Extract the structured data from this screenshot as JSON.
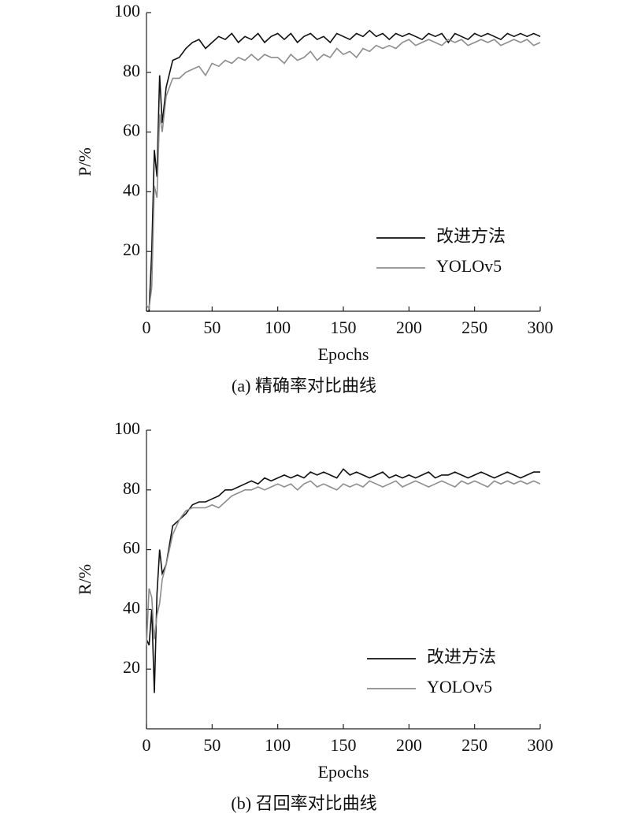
{
  "chart_data": [
    {
      "type": "line",
      "xlabel": "Epochs",
      "ylabel": "P/%",
      "caption": "(a) 精确率对比曲线",
      "xlim": [
        0,
        300
      ],
      "xticks": [
        0,
        50,
        100,
        150,
        200,
        250,
        300
      ],
      "ylim": [
        0,
        100
      ],
      "yticks": [
        20,
        40,
        60,
        80,
        100
      ],
      "legend": "right",
      "x": [
        0,
        2,
        4,
        6,
        8,
        10,
        12,
        15,
        20,
        25,
        30,
        35,
        40,
        45,
        50,
        55,
        60,
        65,
        70,
        75,
        80,
        85,
        90,
        95,
        100,
        105,
        110,
        115,
        120,
        125,
        130,
        135,
        140,
        145,
        150,
        155,
        160,
        165,
        170,
        175,
        180,
        185,
        190,
        195,
        200,
        205,
        210,
        215,
        220,
        225,
        230,
        235,
        240,
        245,
        250,
        255,
        260,
        265,
        270,
        275,
        280,
        285,
        290,
        295,
        300
      ],
      "series": [
        {
          "name": "改进方法",
          "color": "#111111",
          "values": [
            0,
            0,
            20,
            54,
            45,
            79,
            63,
            75,
            84,
            85,
            88,
            90,
            91,
            88,
            90,
            92,
            91,
            93,
            90,
            92,
            91,
            93,
            90,
            92,
            93,
            91,
            93,
            90,
            92,
            93,
            91,
            92,
            90,
            93,
            92,
            91,
            93,
            92,
            94,
            92,
            93,
            91,
            93,
            92,
            93,
            92,
            91,
            93,
            92,
            93,
            90,
            93,
            92,
            91,
            93,
            92,
            93,
            92,
            91,
            93,
            92,
            93,
            92,
            93,
            92
          ]
        },
        {
          "name": "YOLOv5",
          "color": "#8c8c8c",
          "values": [
            2,
            1,
            8,
            42,
            38,
            66,
            60,
            72,
            78,
            78,
            80,
            81,
            82,
            79,
            83,
            82,
            84,
            83,
            85,
            84,
            86,
            84,
            86,
            85,
            85,
            83,
            86,
            84,
            85,
            87,
            84,
            86,
            85,
            88,
            86,
            87,
            85,
            88,
            87,
            89,
            88,
            89,
            88,
            90,
            91,
            89,
            90,
            91,
            90,
            89,
            91,
            90,
            91,
            89,
            90,
            91,
            90,
            91,
            89,
            90,
            91,
            90,
            91,
            89,
            90
          ]
        }
      ]
    },
    {
      "type": "line",
      "xlabel": "Epochs",
      "ylabel": "R/%",
      "caption": "(b) 召回率对比曲线",
      "xlim": [
        0,
        300
      ],
      "xticks": [
        0,
        50,
        100,
        150,
        200,
        250,
        300
      ],
      "ylim": [
        0,
        100
      ],
      "yticks": [
        20,
        40,
        60,
        80,
        100
      ],
      "legend": "right",
      "x": [
        0,
        2,
        4,
        6,
        8,
        10,
        12,
        15,
        20,
        25,
        30,
        35,
        40,
        45,
        50,
        55,
        60,
        65,
        70,
        75,
        80,
        85,
        90,
        95,
        100,
        105,
        110,
        115,
        120,
        125,
        130,
        135,
        140,
        145,
        150,
        155,
        160,
        165,
        170,
        175,
        180,
        185,
        190,
        195,
        200,
        205,
        210,
        215,
        220,
        225,
        230,
        235,
        240,
        245,
        250,
        255,
        260,
        265,
        270,
        275,
        280,
        285,
        290,
        295,
        300
      ],
      "series": [
        {
          "name": "改进方法",
          "color": "#111111",
          "values": [
            30,
            28,
            40,
            12,
            45,
            60,
            52,
            55,
            68,
            70,
            72,
            75,
            76,
            76,
            77,
            78,
            80,
            80,
            81,
            82,
            83,
            82,
            84,
            83,
            84,
            85,
            84,
            85,
            84,
            86,
            85,
            86,
            85,
            84,
            87,
            85,
            86,
            85,
            84,
            85,
            86,
            84,
            85,
            84,
            85,
            84,
            85,
            86,
            84,
            85,
            85,
            86,
            85,
            84,
            85,
            86,
            85,
            84,
            85,
            86,
            85,
            84,
            85,
            86,
            86
          ]
        },
        {
          "name": "YOLOv5",
          "color": "#8c8c8c",
          "values": [
            28,
            47,
            44,
            30,
            38,
            42,
            50,
            55,
            65,
            70,
            73,
            74,
            74,
            74,
            75,
            74,
            76,
            78,
            79,
            80,
            80,
            81,
            80,
            81,
            82,
            81,
            82,
            80,
            82,
            83,
            81,
            82,
            81,
            80,
            82,
            81,
            82,
            81,
            83,
            82,
            81,
            82,
            83,
            81,
            82,
            83,
            82,
            81,
            82,
            83,
            82,
            81,
            83,
            82,
            83,
            82,
            81,
            83,
            82,
            83,
            82,
            83,
            82,
            83,
            82
          ]
        }
      ]
    }
  ]
}
